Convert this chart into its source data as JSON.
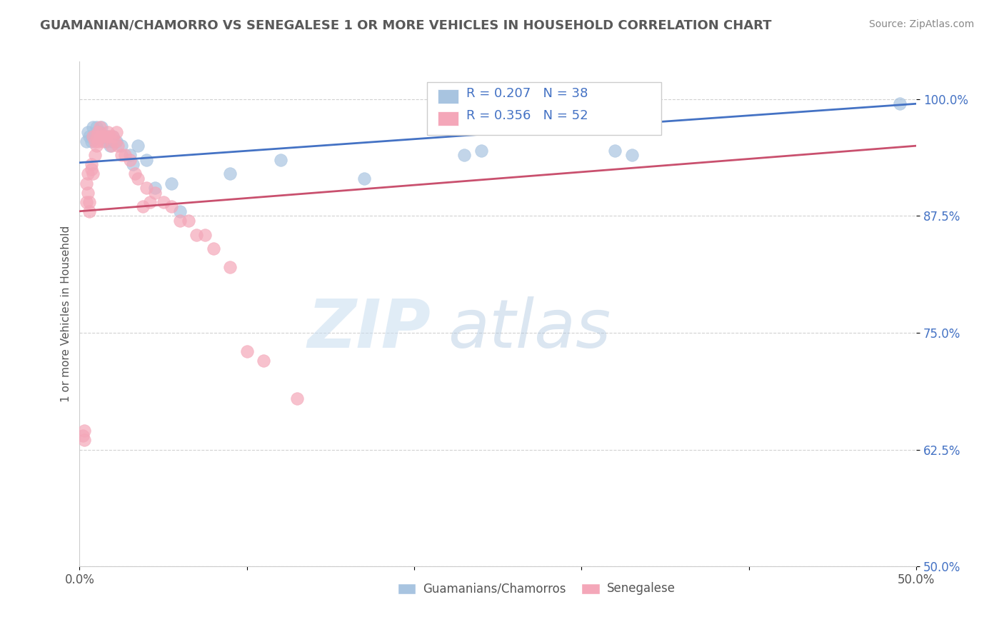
{
  "title": "GUAMANIAN/CHAMORRO VS SENEGALESE 1 OR MORE VEHICLES IN HOUSEHOLD CORRELATION CHART",
  "source": "Source: ZipAtlas.com",
  "ylabel": "1 or more Vehicles in Household",
  "xlim": [
    0.0,
    0.5
  ],
  "ylim": [
    0.5,
    1.04
  ],
  "xticks": [
    0.0,
    0.1,
    0.2,
    0.3,
    0.4,
    0.5
  ],
  "xticklabels": [
    "0.0%",
    "",
    "",
    "",
    "",
    "50.0%"
  ],
  "yticks": [
    0.5,
    0.625,
    0.75,
    0.875,
    1.0
  ],
  "yticklabels": [
    "50.0%",
    "62.5%",
    "75.0%",
    "87.5%",
    "100.0%"
  ],
  "legend_r": [
    0.207,
    0.356
  ],
  "legend_n": [
    38,
    52
  ],
  "blue_color": "#a8c4e0",
  "pink_color": "#f4a7b9",
  "blue_line_color": "#4472c4",
  "pink_line_color": "#c9506e",
  "legend_text_color": "#4472c4",
  "title_color": "#595959",
  "watermark_zip": "ZIP",
  "watermark_atlas": "atlas",
  "blue_scatter_x": [
    0.004,
    0.005,
    0.006,
    0.007,
    0.008,
    0.008,
    0.009,
    0.01,
    0.01,
    0.011,
    0.011,
    0.012,
    0.012,
    0.013,
    0.014,
    0.015,
    0.016,
    0.017,
    0.018,
    0.019,
    0.02,
    0.022,
    0.025,
    0.03,
    0.032,
    0.035,
    0.04,
    0.045,
    0.055,
    0.06,
    0.09,
    0.12,
    0.17,
    0.23,
    0.24,
    0.32,
    0.33,
    0.49
  ],
  "blue_scatter_y": [
    0.955,
    0.965,
    0.96,
    0.955,
    0.96,
    0.97,
    0.96,
    0.965,
    0.97,
    0.96,
    0.965,
    0.96,
    0.965,
    0.97,
    0.96,
    0.96,
    0.955,
    0.96,
    0.95,
    0.955,
    0.96,
    0.955,
    0.95,
    0.94,
    0.93,
    0.95,
    0.935,
    0.905,
    0.91,
    0.88,
    0.92,
    0.935,
    0.915,
    0.94,
    0.945,
    0.945,
    0.94,
    0.995
  ],
  "pink_scatter_x": [
    0.002,
    0.003,
    0.003,
    0.004,
    0.004,
    0.005,
    0.005,
    0.006,
    0.006,
    0.007,
    0.007,
    0.008,
    0.008,
    0.009,
    0.009,
    0.01,
    0.01,
    0.011,
    0.011,
    0.012,
    0.012,
    0.013,
    0.014,
    0.015,
    0.016,
    0.017,
    0.018,
    0.019,
    0.02,
    0.021,
    0.022,
    0.023,
    0.025,
    0.027,
    0.03,
    0.033,
    0.035,
    0.038,
    0.04,
    0.042,
    0.045,
    0.05,
    0.055,
    0.06,
    0.065,
    0.07,
    0.075,
    0.08,
    0.09,
    0.1,
    0.11,
    0.13
  ],
  "pink_scatter_y": [
    0.64,
    0.645,
    0.635,
    0.91,
    0.89,
    0.92,
    0.9,
    0.89,
    0.88,
    0.93,
    0.925,
    0.92,
    0.96,
    0.955,
    0.94,
    0.96,
    0.95,
    0.965,
    0.955,
    0.96,
    0.97,
    0.96,
    0.955,
    0.96,
    0.96,
    0.965,
    0.96,
    0.95,
    0.96,
    0.955,
    0.965,
    0.95,
    0.94,
    0.94,
    0.935,
    0.92,
    0.915,
    0.885,
    0.905,
    0.89,
    0.9,
    0.89,
    0.885,
    0.87,
    0.87,
    0.855,
    0.855,
    0.84,
    0.82,
    0.73,
    0.72,
    0.68
  ],
  "blue_trend_x": [
    0.0,
    0.5
  ],
  "blue_trend_y": [
    0.932,
    0.995
  ],
  "pink_trend_x": [
    0.0,
    0.5
  ],
  "pink_trend_y": [
    0.88,
    0.95
  ]
}
